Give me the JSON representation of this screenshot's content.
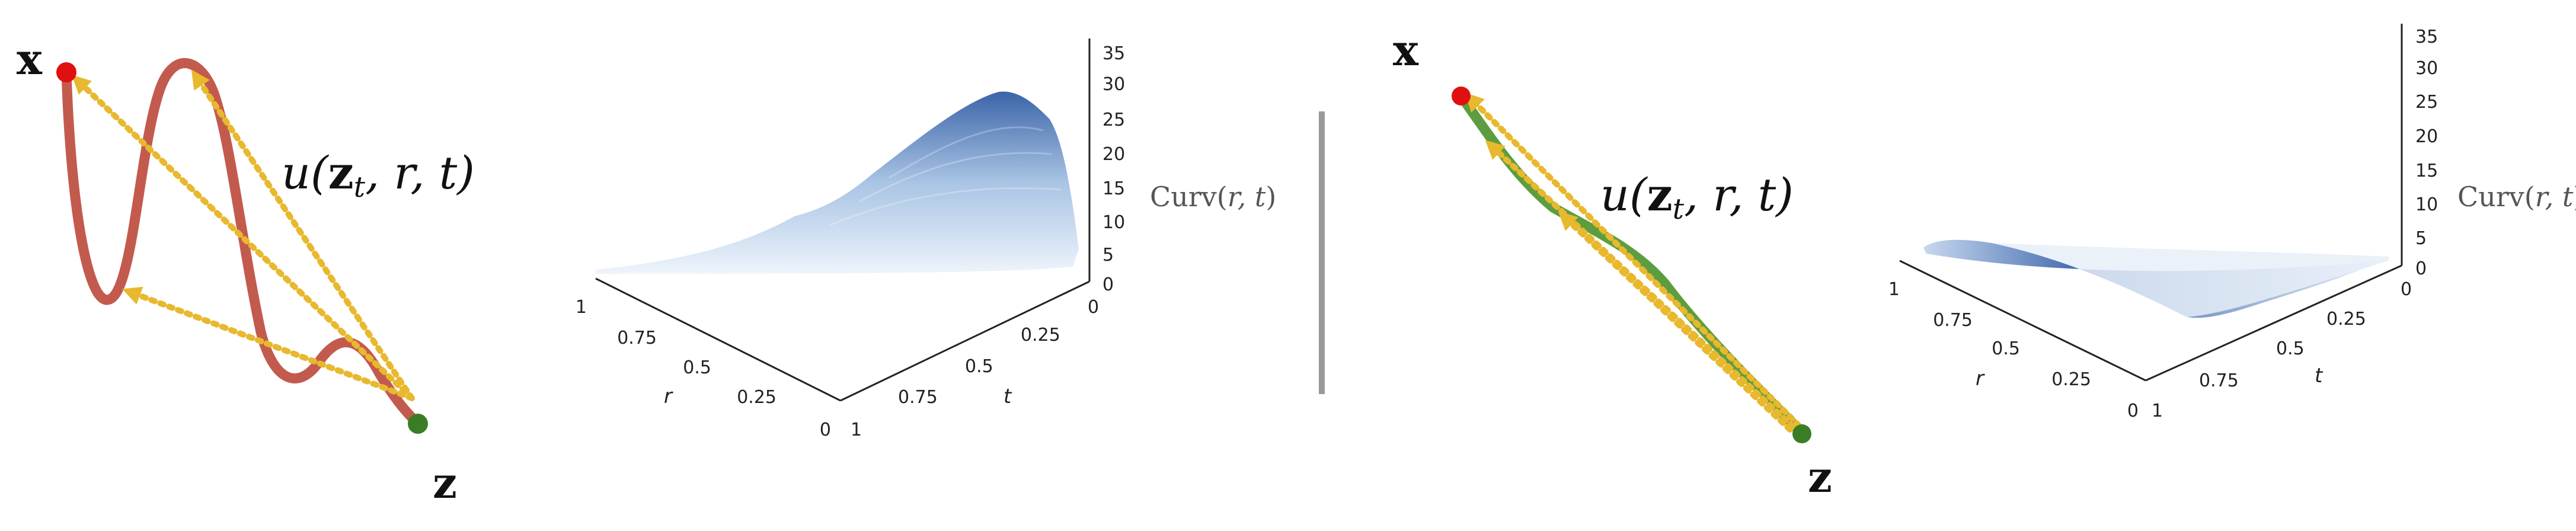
{
  "left_panel": {
    "point_x_label": "x",
    "point_z_label": "z",
    "flow_label_main": "u(",
    "flow_label_bold": "z",
    "flow_label_sub": "t",
    "flow_label_rest": ", r, t)",
    "colors": {
      "curve": "#c25b4e",
      "arrow": "#e8b82e",
      "start": "#e01010",
      "end": "#3a7d25"
    }
  },
  "right_panel": {
    "point_x_label": "x",
    "point_z_label": "z",
    "flow_label_main": "u(",
    "flow_label_bold": "z",
    "flow_label_sub": "t",
    "flow_label_rest": ", r, t)",
    "colors": {
      "curve": "#5c9e3f",
      "arrow": "#e8b82e",
      "start": "#e01010",
      "end": "#3a7d25"
    }
  },
  "chart_data": [
    {
      "type": "surface",
      "zlabel_prefix": "Curv(",
      "zlabel_vars": "r, t",
      "zlabel_suffix": ")",
      "xlabel": "r",
      "ylabel": "t",
      "x_ticks": [
        "1",
        "0.75",
        "0.5",
        "0.25",
        "0"
      ],
      "y_ticks": [
        "0",
        "0.25",
        "0.5",
        "0.75",
        "1"
      ],
      "z_ticks": [
        "0",
        "5",
        "10",
        "15",
        "20",
        "25",
        "30",
        "35"
      ],
      "zlim": [
        0,
        35
      ],
      "peak_value": 30,
      "colormap": "Blues"
    },
    {
      "type": "surface",
      "zlabel_prefix": "Curv(",
      "zlabel_vars": "r, t",
      "zlabel_suffix": ")",
      "xlabel": "r",
      "ylabel": "t",
      "x_ticks": [
        "1",
        "0.75",
        "0.5",
        "0.25",
        "0"
      ],
      "y_ticks": [
        "0",
        "0.25",
        "0.5",
        "0.75",
        "1"
      ],
      "z_ticks": [
        "0",
        "5",
        "10",
        "15",
        "20",
        "25",
        "30",
        "35"
      ],
      "zlim": [
        0,
        35
      ],
      "peak_value": 2,
      "colormap": "Blues"
    }
  ]
}
